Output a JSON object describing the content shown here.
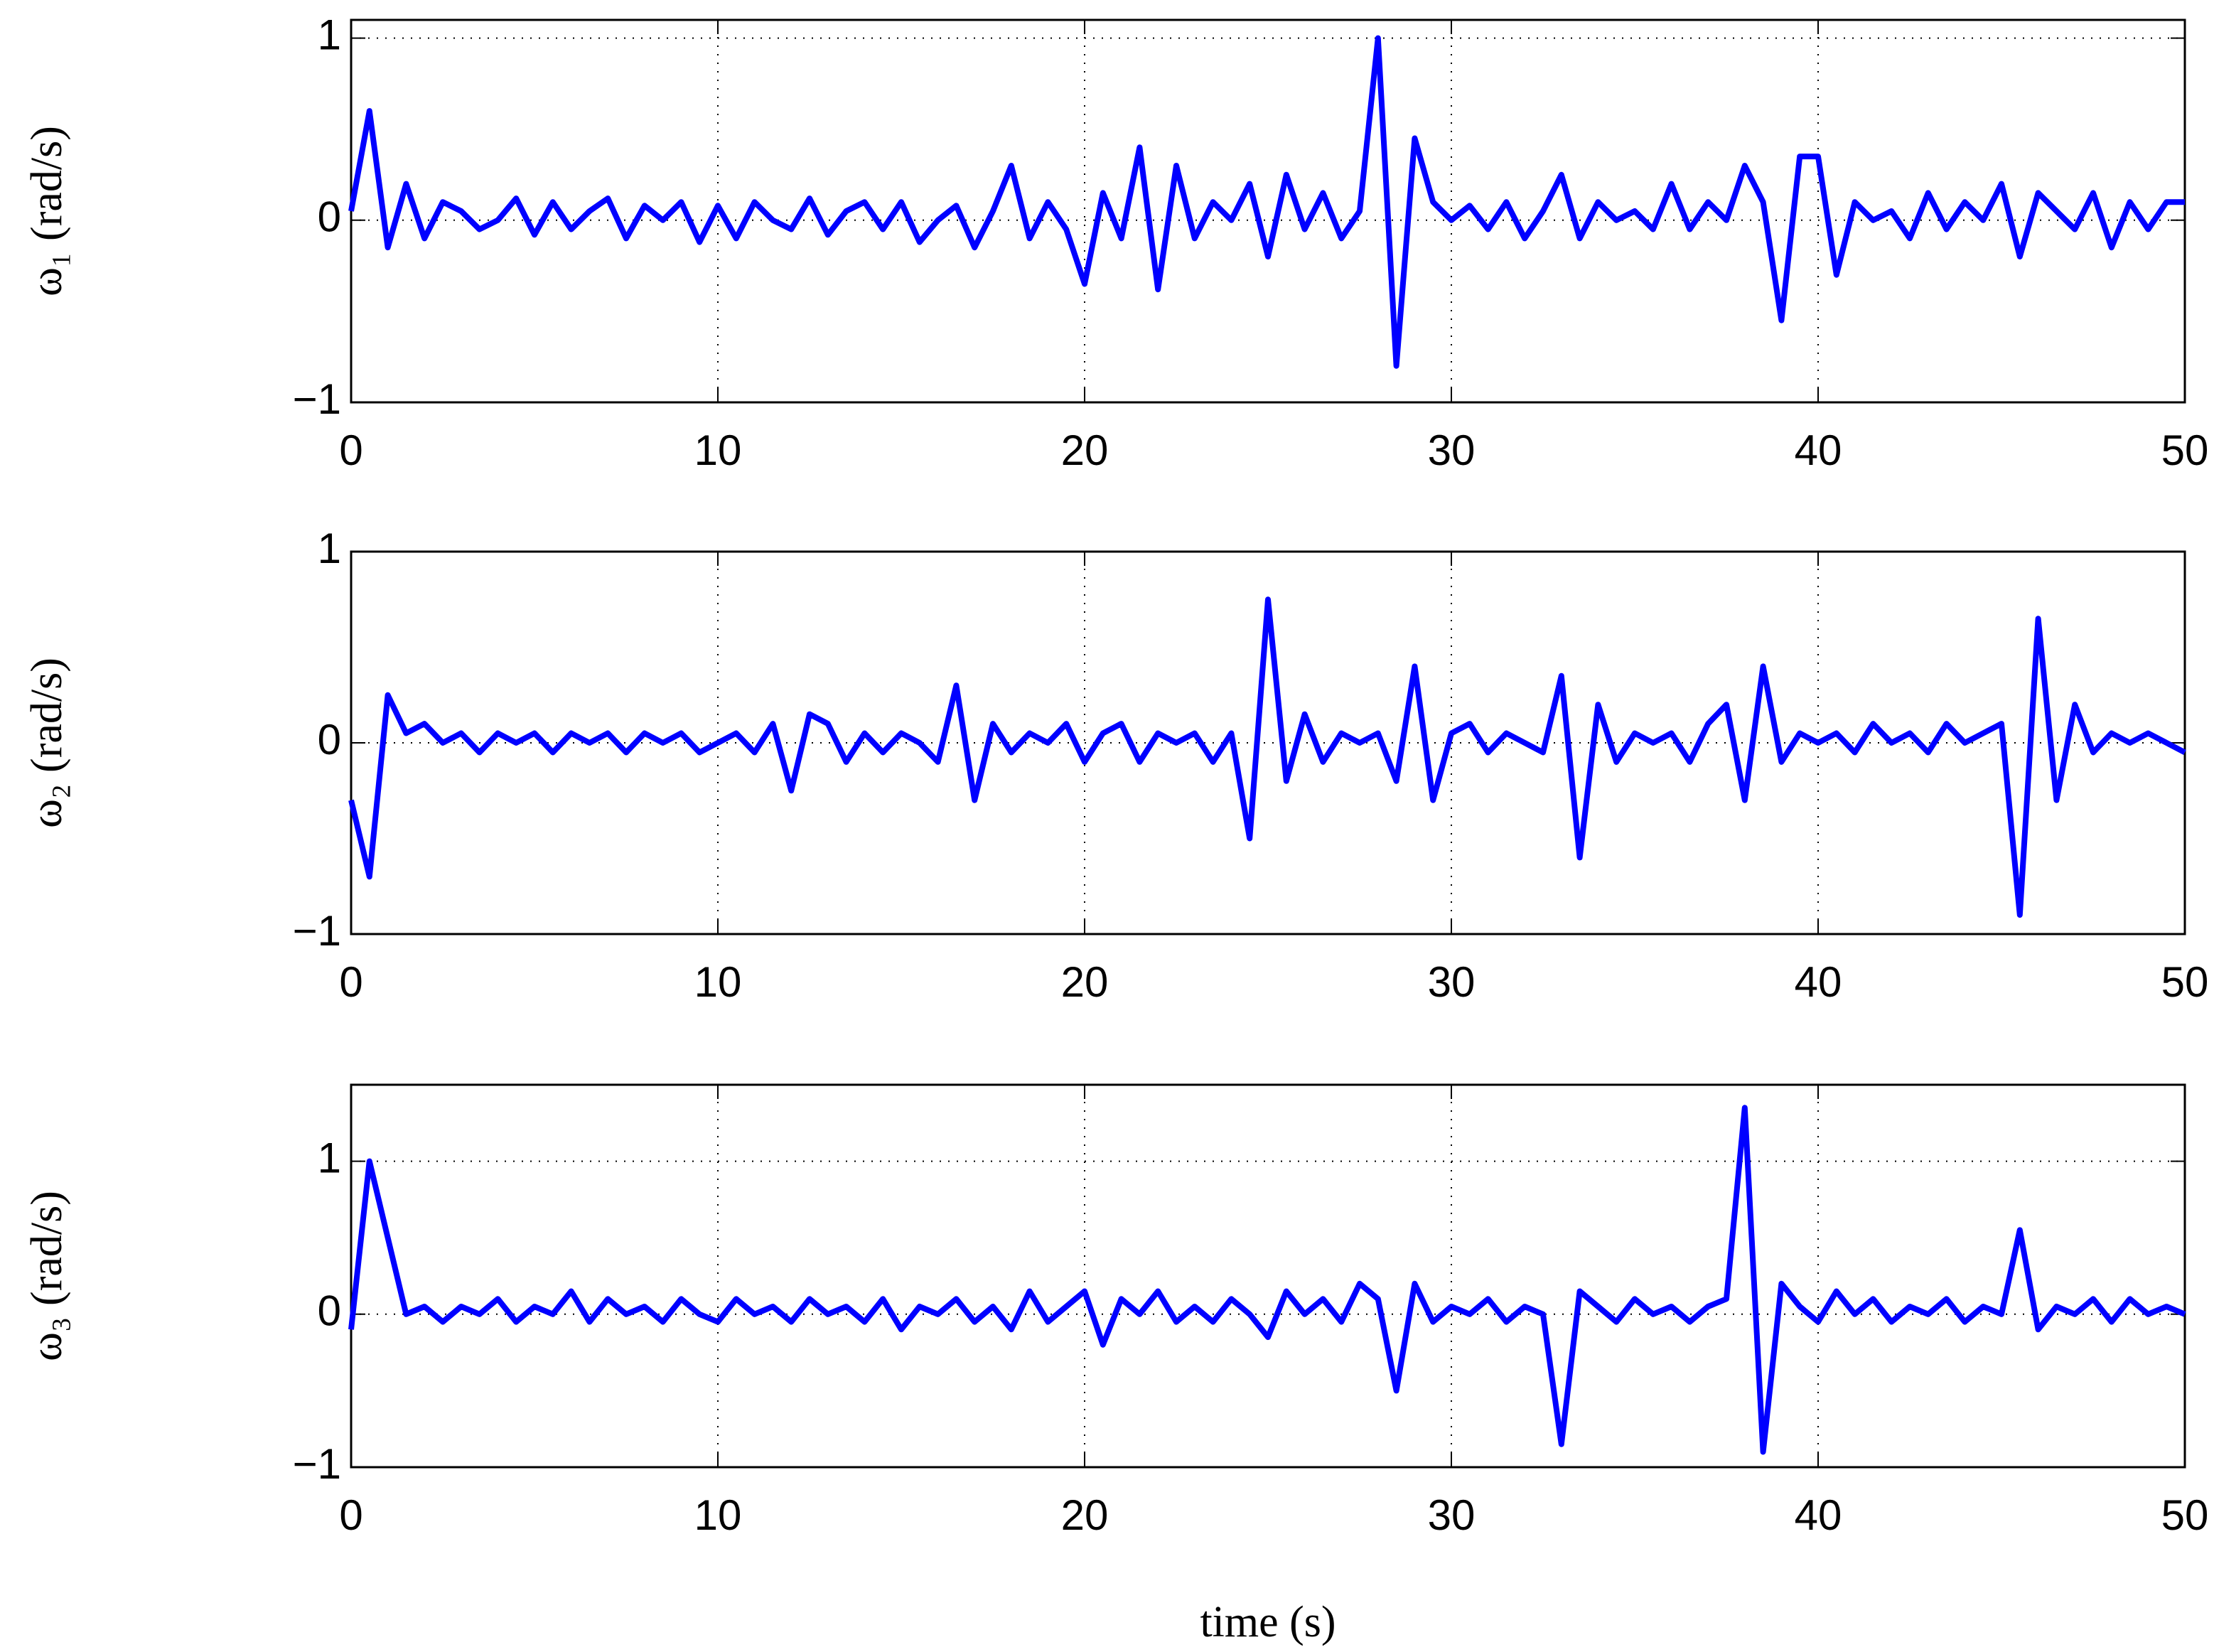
{
  "chart_data": [
    {
      "type": "line",
      "ylabel": "ω₁ (rad/s)",
      "color": "#0000ff",
      "grid": true,
      "xlim": [
        0,
        50
      ],
      "ylim": [
        -1,
        1.1
      ],
      "xticks": [
        0,
        10,
        20,
        30,
        40,
        50
      ],
      "yticks": [
        {
          "value": -1,
          "label": "−1"
        },
        0,
        1
      ],
      "x": [
        0,
        0.5,
        1,
        1.5,
        2,
        2.5,
        3,
        3.5,
        4,
        4.5,
        5,
        5.5,
        6,
        6.5,
        7,
        7.5,
        8,
        8.5,
        9,
        9.5,
        10,
        10.5,
        11,
        11.5,
        12,
        12.5,
        13,
        13.5,
        14,
        14.5,
        15,
        15.5,
        16,
        16.5,
        17,
        17.5,
        18,
        18.5,
        19,
        19.5,
        20,
        20.5,
        21,
        21.5,
        22,
        22.5,
        23,
        23.5,
        24,
        24.5,
        25,
        25.5,
        26,
        26.5,
        27,
        27.5,
        28,
        28.5,
        29,
        29.5,
        30,
        30.5,
        31,
        31.5,
        32,
        32.5,
        33,
        33.5,
        34,
        34.5,
        35,
        35.5,
        36,
        36.5,
        37,
        37.5,
        38,
        38.5,
        39,
        39.5,
        40,
        40.5,
        41,
        41.5,
        42,
        42.5,
        43,
        43.5,
        44,
        44.5,
        45,
        45.5,
        46,
        46.5,
        47,
        47.5,
        48,
        48.5,
        49,
        49.5,
        50
      ],
      "values": [
        0.05,
        0.6,
        -0.15,
        0.2,
        -0.1,
        0.1,
        0.05,
        -0.05,
        0.0,
        0.12,
        -0.08,
        0.1,
        -0.05,
        0.05,
        0.12,
        -0.1,
        0.08,
        0.0,
        0.1,
        -0.12,
        0.08,
        -0.1,
        0.1,
        0.0,
        -0.05,
        0.12,
        -0.08,
        0.05,
        0.1,
        -0.05,
        0.1,
        -0.12,
        0.0,
        0.08,
        -0.15,
        0.05,
        0.3,
        -0.1,
        0.1,
        -0.05,
        -0.35,
        0.15,
        -0.1,
        0.4,
        -0.38,
        0.3,
        -0.1,
        0.1,
        0.0,
        0.2,
        -0.2,
        0.25,
        -0.05,
        0.15,
        -0.1,
        0.05,
        1.0,
        -0.8,
        0.45,
        0.1,
        0.0,
        0.08,
        -0.05,
        0.1,
        -0.1,
        0.05,
        0.25,
        -0.1,
        0.1,
        0.0,
        0.05,
        -0.05,
        0.2,
        -0.05,
        0.1,
        0.0,
        0.3,
        0.1,
        -0.55,
        0.35,
        0.35,
        -0.3,
        0.1,
        0.0,
        0.05,
        -0.1,
        0.15,
        -0.05,
        0.1,
        0.0,
        0.2,
        -0.2,
        0.15,
        0.05,
        -0.05,
        0.15,
        -0.15,
        0.1,
        -0.05,
        0.1,
        0.1
      ]
    },
    {
      "type": "line",
      "ylabel": "ω₂ (rad/s)",
      "color": "#0000ff",
      "grid": true,
      "xlim": [
        0,
        50
      ],
      "ylim": [
        -1,
        1
      ],
      "xticks": [
        0,
        10,
        20,
        30,
        40,
        50
      ],
      "yticks": [
        {
          "value": -1,
          "label": "−1"
        },
        0,
        1
      ],
      "x": [
        0,
        0.5,
        1,
        1.5,
        2,
        2.5,
        3,
        3.5,
        4,
        4.5,
        5,
        5.5,
        6,
        6.5,
        7,
        7.5,
        8,
        8.5,
        9,
        9.5,
        10,
        10.5,
        11,
        11.5,
        12,
        12.5,
        13,
        13.5,
        14,
        14.5,
        15,
        15.5,
        16,
        16.5,
        17,
        17.5,
        18,
        18.5,
        19,
        19.5,
        20,
        20.5,
        21,
        21.5,
        22,
        22.5,
        23,
        23.5,
        24,
        24.5,
        25,
        25.5,
        26,
        26.5,
        27,
        27.5,
        28,
        28.5,
        29,
        29.5,
        30,
        30.5,
        31,
        31.5,
        32,
        32.5,
        33,
        33.5,
        34,
        34.5,
        35,
        35.5,
        36,
        36.5,
        37,
        37.5,
        38,
        38.5,
        39,
        39.5,
        40,
        40.5,
        41,
        41.5,
        42,
        42.5,
        43,
        43.5,
        44,
        44.5,
        45,
        45.5,
        46,
        46.5,
        47,
        47.5,
        48,
        48.5,
        49,
        49.5,
        50
      ],
      "values": [
        -0.3,
        -0.7,
        0.25,
        0.05,
        0.1,
        0.0,
        0.05,
        -0.05,
        0.05,
        0.0,
        0.05,
        -0.05,
        0.05,
        0.0,
        0.05,
        -0.05,
        0.05,
        0.0,
        0.05,
        -0.05,
        0.0,
        0.05,
        -0.05,
        0.1,
        -0.25,
        0.15,
        0.1,
        -0.1,
        0.05,
        -0.05,
        0.05,
        0.0,
        -0.1,
        0.3,
        -0.3,
        0.1,
        -0.05,
        0.05,
        0.0,
        0.1,
        -0.1,
        0.05,
        0.1,
        -0.1,
        0.05,
        0.0,
        0.05,
        -0.1,
        0.05,
        -0.5,
        0.75,
        -0.2,
        0.15,
        -0.1,
        0.05,
        0.0,
        0.05,
        -0.2,
        0.4,
        -0.3,
        0.05,
        0.1,
        -0.05,
        0.05,
        0.0,
        -0.05,
        0.35,
        -0.6,
        0.2,
        -0.1,
        0.05,
        0.0,
        0.05,
        -0.1,
        0.1,
        0.2,
        -0.3,
        0.4,
        -0.1,
        0.05,
        0.0,
        0.05,
        -0.05,
        0.1,
        0.0,
        0.05,
        -0.05,
        0.1,
        0.0,
        0.05,
        0.1,
        -0.9,
        0.65,
        -0.3,
        0.2,
        -0.05,
        0.05,
        0.0,
        0.05,
        0.0,
        -0.05
      ]
    },
    {
      "type": "line",
      "ylabel": "ω₃ (rad/s)",
      "xlabel": "time (s)",
      "color": "#0000ff",
      "grid": true,
      "xlim": [
        0,
        50
      ],
      "ylim": [
        -1,
        1.5
      ],
      "xticks": [
        0,
        10,
        20,
        30,
        40,
        50
      ],
      "yticks": [
        {
          "value": -1,
          "label": "−1"
        },
        0,
        1
      ],
      "x": [
        0,
        0.5,
        1,
        1.5,
        2,
        2.5,
        3,
        3.5,
        4,
        4.5,
        5,
        5.5,
        6,
        6.5,
        7,
        7.5,
        8,
        8.5,
        9,
        9.5,
        10,
        10.5,
        11,
        11.5,
        12,
        12.5,
        13,
        13.5,
        14,
        14.5,
        15,
        15.5,
        16,
        16.5,
        17,
        17.5,
        18,
        18.5,
        19,
        19.5,
        20,
        20.5,
        21,
        21.5,
        22,
        22.5,
        23,
        23.5,
        24,
        24.5,
        25,
        25.5,
        26,
        26.5,
        27,
        27.5,
        28,
        28.5,
        29,
        29.5,
        30,
        30.5,
        31,
        31.5,
        32,
        32.5,
        33,
        33.5,
        34,
        34.5,
        35,
        35.5,
        36,
        36.5,
        37,
        37.5,
        38,
        38.5,
        39,
        39.5,
        40,
        40.5,
        41,
        41.5,
        42,
        42.5,
        43,
        43.5,
        44,
        44.5,
        45,
        45.5,
        46,
        46.5,
        47,
        47.5,
        48,
        48.5,
        49,
        49.5,
        50
      ],
      "values": [
        -0.1,
        1.0,
        0.5,
        0.0,
        0.05,
        -0.05,
        0.05,
        0.0,
        0.1,
        -0.05,
        0.05,
        0.0,
        0.15,
        -0.05,
        0.1,
        0.0,
        0.05,
        -0.05,
        0.1,
        0.0,
        -0.05,
        0.1,
        0.0,
        0.05,
        -0.05,
        0.1,
        0.0,
        0.05,
        -0.05,
        0.1,
        -0.1,
        0.05,
        0.0,
        0.1,
        -0.05,
        0.05,
        -0.1,
        0.15,
        -0.05,
        0.05,
        0.15,
        -0.2,
        0.1,
        0.0,
        0.15,
        -0.05,
        0.05,
        -0.05,
        0.1,
        0.0,
        -0.15,
        0.15,
        0.0,
        0.1,
        -0.05,
        0.2,
        0.1,
        -0.5,
        0.2,
        -0.05,
        0.05,
        0.0,
        0.1,
        -0.05,
        0.05,
        0.0,
        -0.85,
        0.15,
        0.05,
        -0.05,
        0.1,
        0.0,
        0.05,
        -0.05,
        0.05,
        0.1,
        1.35,
        -0.9,
        0.2,
        0.05,
        -0.05,
        0.15,
        0.0,
        0.1,
        -0.05,
        0.05,
        0.0,
        0.1,
        -0.05,
        0.05,
        0.0,
        0.55,
        -0.1,
        0.05,
        0.0,
        0.1,
        -0.05,
        0.1,
        0.0,
        0.05,
        0.0
      ]
    }
  ]
}
